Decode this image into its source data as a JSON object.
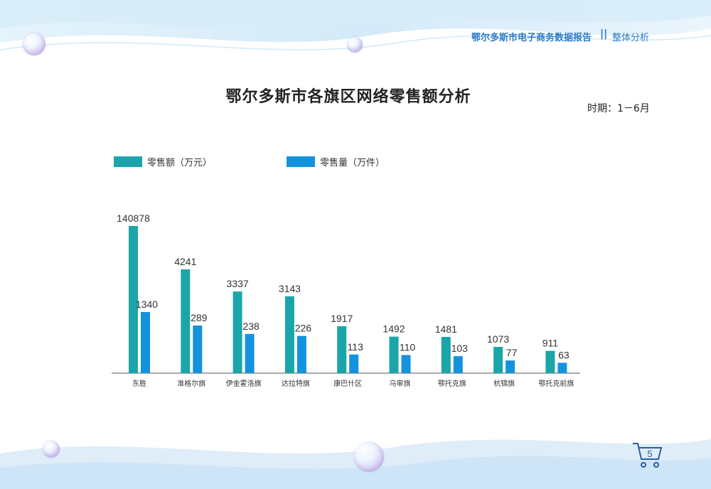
{
  "header": {
    "report_title": "鄂尔多斯市电子商务数据报告",
    "separator": "||",
    "section": "整体分析"
  },
  "title": "鄂尔多斯市各旗区网络零售额分析",
  "period": "时期：1－6月",
  "page_number": "5",
  "colors": {
    "sales": "#1aa6a8",
    "volume": "#1592dd",
    "header_text": "#2a79c9"
  },
  "chart_data": {
    "type": "bar",
    "categories": [
      "东胜",
      "准格尔旗",
      "伊金霍洛旗",
      "达拉特旗",
      "康巴什区",
      "乌审旗",
      "鄂托克旗",
      "杭锦旗",
      "鄂托克前旗"
    ],
    "series": [
      {
        "name": "零售额（万元）",
        "values": [
          140878,
          4241,
          3337,
          3143,
          1917,
          1492,
          1481,
          1073,
          911
        ]
      },
      {
        "name": "零售量（万件）",
        "values": [
          1340,
          289,
          238,
          226,
          113,
          110,
          103,
          77,
          63
        ]
      }
    ],
    "legend_position": "top-left",
    "grid": false
  }
}
